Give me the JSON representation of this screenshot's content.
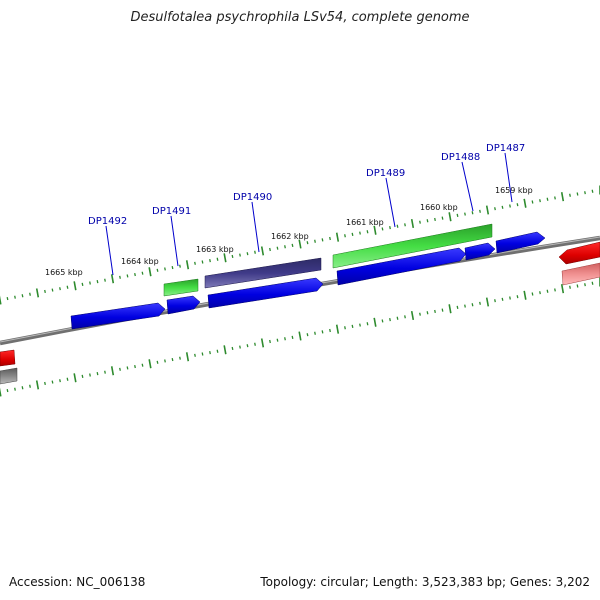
{
  "title": "Desulfotalea psychrophila LSv54, complete genome",
  "footer": {
    "accession": "Accession: NC_006138",
    "topology": "Topology: circular; Length: 3,523,383 bp; Genes: 3,202"
  },
  "colors": {
    "backbone": "#808080",
    "forward_cds": "#0000ee",
    "green_feature": "#33cc33",
    "purple_feature": "#3d3580",
    "red_feature": "#ee0000",
    "tick": "#2e8b2e",
    "label_line": "#0000cc"
  },
  "kbp_labels": [
    "1665 kbp",
    "1664 kbp",
    "1663 kbp",
    "1662 kbp",
    "1661 kbp",
    "1660 kbp",
    "1659 kbp"
  ],
  "gene_labels": [
    "DP1492",
    "DP1491",
    "DP1490",
    "DP1489",
    "DP1488",
    "DP1487"
  ]
}
